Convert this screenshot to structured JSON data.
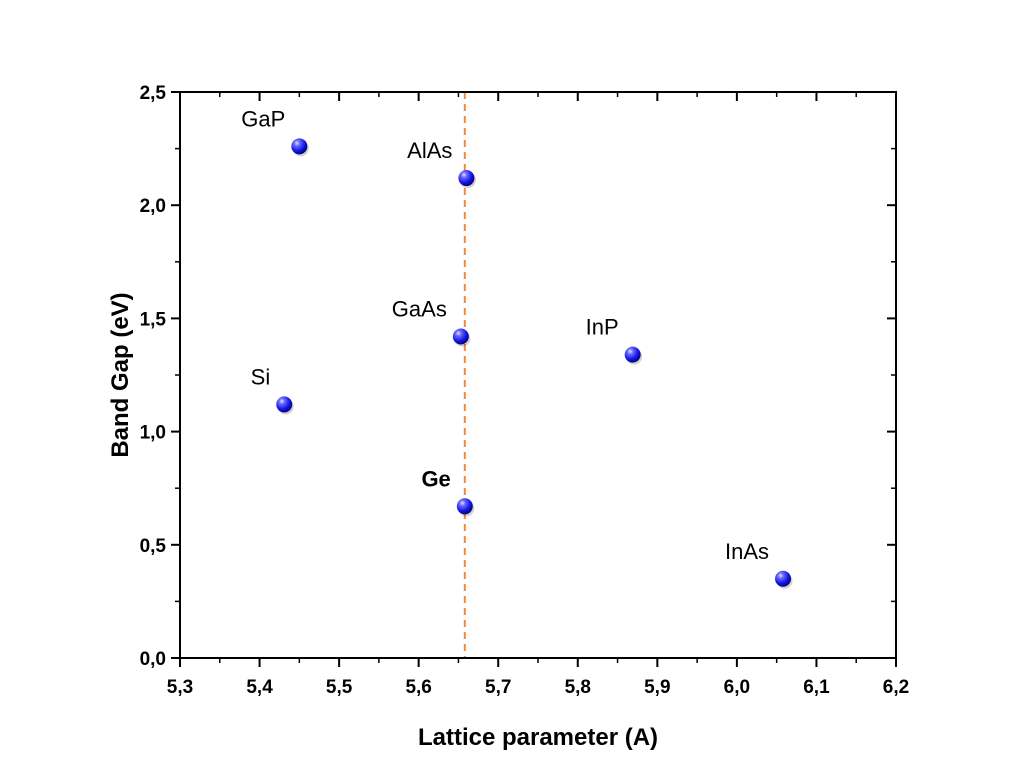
{
  "chart_data": {
    "type": "scatter",
    "xlabel": "Lattice parameter (A)",
    "ylabel": "Band Gap (eV)",
    "xlim": [
      5.3,
      6.2
    ],
    "ylim": [
      0.0,
      2.5
    ],
    "x_ticks": [
      "5,3",
      "5,4",
      "5,5",
      "5,6",
      "5,7",
      "5,8",
      "5,9",
      "6,0",
      "6,1",
      "6,2"
    ],
    "y_ticks": [
      "0,0",
      "0,5",
      "1,0",
      "1,5",
      "2,0",
      "2,5"
    ],
    "points": [
      {
        "label": "GaP",
        "x": 5.45,
        "y": 2.26,
        "bold": false
      },
      {
        "label": "AlAs",
        "x": 5.66,
        "y": 2.12,
        "bold": false
      },
      {
        "label": "GaAs",
        "x": 5.653,
        "y": 1.42,
        "bold": false
      },
      {
        "label": "InP",
        "x": 5.869,
        "y": 1.34,
        "bold": false
      },
      {
        "label": "Si",
        "x": 5.431,
        "y": 1.12,
        "bold": false
      },
      {
        "label": "Ge",
        "x": 5.658,
        "y": 0.67,
        "bold": true
      },
      {
        "label": "InAs",
        "x": 6.058,
        "y": 0.35,
        "bold": false
      }
    ],
    "reference_line": {
      "x": 5.658,
      "color": "#f08a3c"
    },
    "marker_color": "#1414e6",
    "grid": false,
    "legend": "none"
  }
}
